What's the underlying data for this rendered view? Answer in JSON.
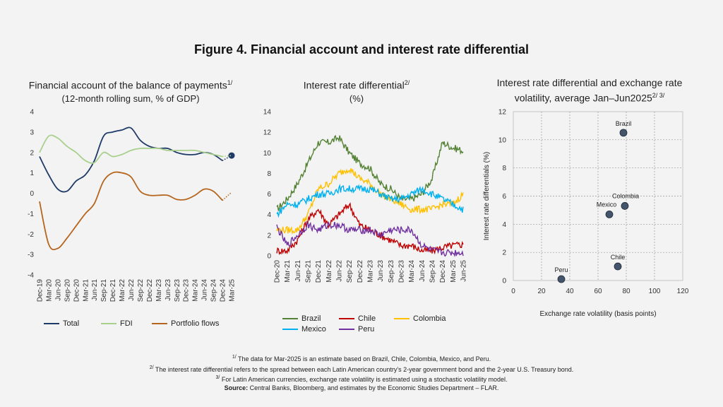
{
  "title": "Figure 4. Financial account and interest rate differential",
  "panels": {
    "p1": {
      "title_line1": "Financial account of the balance of payments",
      "sup": "1/",
      "title_line2": "(12-month rolling sum, % of GDP)"
    },
    "p2": {
      "title_line1": "Interest rate differential",
      "sup": "2/",
      "title_line2": "(%)"
    },
    "p3": {
      "title_line1": "Interest rate differential and exchange rate",
      "title_line2": "volatility, average Jan–Jun2025",
      "sup": "2/ 3/"
    }
  },
  "notes": {
    "n1_sup": "1/",
    "n1": " The data for Mar-2025 is an estimate based on Brazil, Chile, Colombia, Mexico, and Peru.",
    "n2_sup": "2/",
    "n2": " The interest rate differential refers to the spread between each Latin American country's 2-year government bond and the 2-year U.S. Treasury bond.",
    "n3_sup": "3/",
    "n3": " For Latin American currencies, exchange rate volatility is estimated using a stochastic volatility model.",
    "source": "Source:",
    "source_text": " Central Banks, Bloomberg, and estimates by the Economic Studies Department – FLAR."
  },
  "chart_data": [
    {
      "type": "line",
      "x": [
        "Dec-19",
        "Mar-20",
        "Jun-20",
        "Sep-20",
        "Dec-20",
        "Mar-21",
        "Jun-21",
        "Sep-21",
        "Dec-21",
        "Mar-22",
        "Jun-22",
        "Sep-22",
        "Dec-22",
        "Mar-23",
        "Jun-23",
        "Sep-23",
        "Dec-23",
        "Mar-24",
        "Jun-24",
        "Sep-24",
        "Dec-24",
        "Mar-25"
      ],
      "ylim": [
        -4,
        4
      ],
      "yticks": [
        -4,
        -3,
        -2,
        -1,
        0,
        1,
        2,
        3,
        4
      ],
      "grid": false,
      "legend": "bottom",
      "series": [
        {
          "name": "Total",
          "color": "#1f3a68",
          "values": [
            1.8,
            0.9,
            0.2,
            0.1,
            0.6,
            0.9,
            1.6,
            2.8,
            3.0,
            3.1,
            3.2,
            2.6,
            2.3,
            2.2,
            2.2,
            2.0,
            1.9,
            1.9,
            2.0,
            1.9,
            1.6,
            1.85
          ],
          "estimate_from_index": 20
        },
        {
          "name": "FDI",
          "color": "#a8d08d",
          "values": [
            2.0,
            2.8,
            2.7,
            2.3,
            2.0,
            1.6,
            1.5,
            2.0,
            1.8,
            1.9,
            2.1,
            2.2,
            2.2,
            2.2,
            2.1,
            2.1,
            2.1,
            2.1,
            2.0,
            1.9,
            1.8,
            1.85
          ],
          "estimate_from_index": 20
        },
        {
          "name": "Portfolio flows",
          "color": "#b5651d",
          "values": [
            -0.4,
            -2.5,
            -2.7,
            -2.2,
            -1.6,
            -1.0,
            -0.5,
            0.6,
            1.0,
            1.0,
            0.8,
            0.1,
            -0.1,
            -0.1,
            -0.1,
            -0.3,
            -0.3,
            -0.1,
            0.2,
            0.1,
            -0.35,
            0.05
          ],
          "estimate_from_index": 20
        }
      ]
    },
    {
      "type": "line",
      "x": [
        "Dec-20",
        "Mar-21",
        "Jun-21",
        "Sep-21",
        "Dec-21",
        "Mar-22",
        "Jun-22",
        "Sep-22",
        "Dec-22",
        "Mar-23",
        "Jun-23",
        "Sep-23",
        "Dec-23",
        "Mar-24",
        "Jun-24",
        "Sep-24",
        "Dec-24",
        "Mar-25",
        "Jun-25"
      ],
      "ylim": [
        0,
        14
      ],
      "yticks": [
        0,
        2,
        4,
        6,
        8,
        10,
        12,
        14
      ],
      "grid": false,
      "legend": "bottom",
      "series": [
        {
          "name": "Brazil",
          "color": "#548235",
          "values": [
            4.5,
            5.5,
            7.0,
            9.0,
            11.0,
            11.0,
            11.5,
            10.0,
            9.0,
            8.5,
            7.0,
            6.5,
            5.5,
            5.5,
            6.0,
            7.5,
            11.0,
            10.5,
            10.2
          ]
        },
        {
          "name": "Chile",
          "color": "#c00000",
          "values": [
            0.5,
            0.5,
            1.5,
            3.5,
            4.5,
            3.0,
            4.0,
            5.0,
            3.0,
            2.5,
            2.0,
            1.5,
            1.0,
            1.0,
            0.5,
            0.5,
            0.8,
            1.0,
            1.1
          ]
        },
        {
          "name": "Colombia",
          "color": "#ffc000",
          "values": [
            2.5,
            2.5,
            2.5,
            4.0,
            6.5,
            7.0,
            8.0,
            8.5,
            7.5,
            7.0,
            6.0,
            5.5,
            5.0,
            4.5,
            4.5,
            4.5,
            5.0,
            5.0,
            6.0
          ]
        },
        {
          "name": "Mexico",
          "color": "#00b0f0",
          "values": [
            4.0,
            5.0,
            5.0,
            5.5,
            6.0,
            6.0,
            6.5,
            6.5,
            6.5,
            6.5,
            6.0,
            5.5,
            5.5,
            6.0,
            6.5,
            6.0,
            5.5,
            5.0,
            4.5
          ]
        },
        {
          "name": "Peru",
          "color": "#7030a0",
          "values": [
            2.8,
            1.0,
            2.0,
            3.0,
            2.5,
            3.0,
            3.0,
            2.5,
            2.5,
            2.5,
            2.0,
            2.5,
            2.5,
            2.5,
            1.0,
            0.5,
            0.3,
            0.3,
            0.3
          ]
        }
      ]
    },
    {
      "type": "scatter",
      "xlabel": "Exchange rate volatility (basis points)",
      "ylabel": "Interest rate differentials (%)",
      "xlim": [
        0,
        120
      ],
      "ylim": [
        0,
        12
      ],
      "xticks": [
        0,
        20,
        40,
        60,
        80,
        100,
        120
      ],
      "yticks": [
        0,
        2,
        4,
        6,
        8,
        10,
        12
      ],
      "grid": true,
      "point_color": "#44546a",
      "points": [
        {
          "label": "Brazil",
          "x": 78,
          "y": 10.5
        },
        {
          "label": "Colombia",
          "x": 79,
          "y": 5.3
        },
        {
          "label": "Mexico",
          "x": 68,
          "y": 4.7
        },
        {
          "label": "Chile",
          "x": 74,
          "y": 1.0
        },
        {
          "label": "Peru",
          "x": 34,
          "y": 0.1
        }
      ]
    }
  ]
}
